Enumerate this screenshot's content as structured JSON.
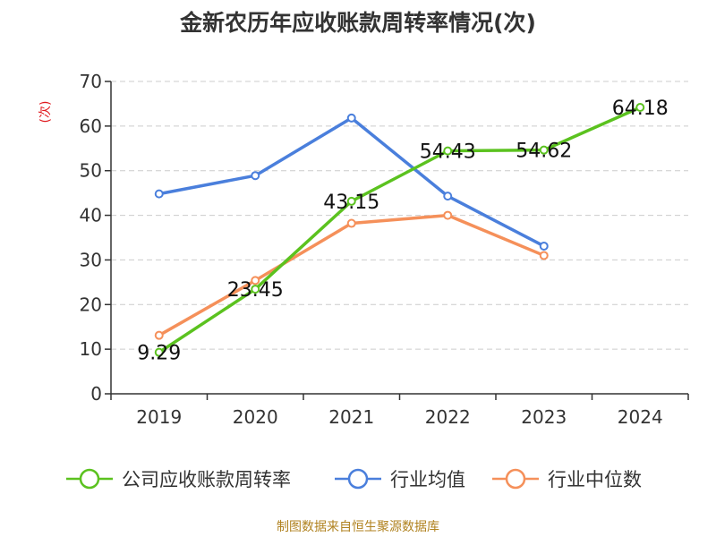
{
  "title": "金新农历年应收账款周转率情况(次)",
  "source_note": "制图数据来自恒生聚源数据库",
  "colors": {
    "axis": "#333333",
    "grid": "#cccccc",
    "label_text": "#111111",
    "ylabel": "#e0191e",
    "source": "#b0821f"
  },
  "chart_data": {
    "type": "line",
    "title": "金新农历年应收账款周转率情况(次)",
    "ylabel": "(次)",
    "xlabel": "",
    "categories": [
      "2019",
      "2020",
      "2021",
      "2022",
      "2023",
      "2024"
    ],
    "yticks": [
      "0",
      "10",
      "20",
      "30",
      "40",
      "50",
      "60",
      "70"
    ],
    "ylim": [
      0,
      70
    ],
    "grid": true,
    "legend_position": "bottom",
    "series": [
      {
        "name": "公司应收账款周转率",
        "color": "#5bc21f",
        "values": [
          9.29,
          23.45,
          43.15,
          54.43,
          54.62,
          64.18
        ],
        "labels": [
          "9.29",
          "23.45",
          "43.15",
          "54.43",
          "54.62",
          "64.18"
        ]
      },
      {
        "name": "行业均值",
        "color": "#4a7fdc",
        "values": [
          44.8,
          48.9,
          61.8,
          44.3,
          33.1,
          null
        ]
      },
      {
        "name": "行业中位数",
        "color": "#f5905a",
        "values": [
          13.1,
          25.4,
          38.2,
          40.0,
          31.0,
          null
        ]
      }
    ]
  }
}
